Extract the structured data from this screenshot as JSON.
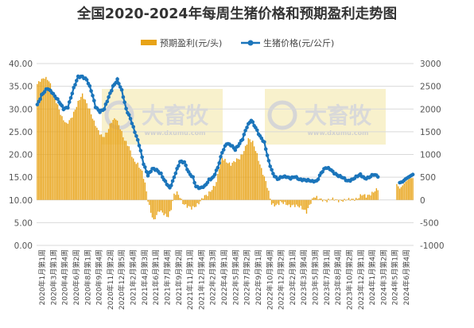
{
  "chart_data": {
    "type": "bar+line",
    "title": "全国2020-2024年每周生猪价格和预期盈利走势图",
    "watermark": {
      "brand": "大畜牧",
      "url": "www.dxumu.com"
    },
    "series": [
      {
        "name": "预期盈利(元/头)",
        "kind": "bar",
        "axis": "right",
        "color": "#E8A317"
      },
      {
        "name": "生猪价格(元/公斤)",
        "kind": "line",
        "axis": "left",
        "color": "#1B75BB"
      }
    ],
    "left_axis": {
      "ticks": [
        "0.00",
        "5.00",
        "10.00",
        "15.00",
        "20.00",
        "25.00",
        "30.00",
        "35.00",
        "40.00"
      ],
      "min": 0,
      "max": 40
    },
    "right_axis": {
      "ticks": [
        "-1000",
        "-500",
        "0",
        "500",
        "1000",
        "1500",
        "2000",
        "2500",
        "3000"
      ],
      "min": -1000,
      "max": 3000
    },
    "x_labels": [
      "2020年1月第1周",
      "2020年3月第1周",
      "2020年4月第4周",
      "2020年6月第2周",
      "2020年8月第1周",
      "2020年9月第4周",
      "2020年11月第2周",
      "2020年12月第5周",
      "2021年2月第4周",
      "2021年4月第3周",
      "2021年6月第1周",
      "2021年7月第4周",
      "2021年9月第2周",
      "2021年11月第1周",
      "2021年12月第4周",
      "2022年2月第3周",
      "2022年4月第1周",
      "2022年5月第4周",
      "2022年7月第2周",
      "2022年9月第1周",
      "2022年10月第4周",
      "2022年12月第2周",
      "2023年2月第1周",
      "2023年3月第4周",
      "2023年5月第3周",
      "2023年7月第1周",
      "2023年8月第4周",
      "2023年10月第2周",
      "2023年12月第1周",
      "2024年1月第4周",
      "2024年3月第2周",
      "2024年5月第1周",
      "2024年6月第4周"
    ],
    "price_keyframes": [
      [
        0,
        31.0
      ],
      [
        3,
        33.0
      ],
      [
        7,
        34.5
      ],
      [
        10,
        33.8
      ],
      [
        14,
        32.0
      ],
      [
        18,
        30.0
      ],
      [
        21,
        30.5
      ],
      [
        25,
        34.5
      ],
      [
        28,
        37.0
      ],
      [
        31,
        37.2
      ],
      [
        34,
        36.5
      ],
      [
        37,
        34.0
      ],
      [
        40,
        30.5
      ],
      [
        43,
        29.5
      ],
      [
        46,
        30.0
      ],
      [
        49,
        32.5
      ],
      [
        52,
        35.0
      ],
      [
        55,
        36.5
      ],
      [
        58,
        34.0
      ],
      [
        61,
        30.0
      ],
      [
        64,
        28.0
      ],
      [
        67,
        25.0
      ],
      [
        70,
        22.0
      ],
      [
        73,
        18.0
      ],
      [
        76,
        15.5
      ],
      [
        79,
        16.8
      ],
      [
        82,
        16.5
      ],
      [
        85,
        15.8
      ],
      [
        88,
        14.0
      ],
      [
        91,
        12.5
      ],
      [
        93,
        14.0
      ],
      [
        95,
        16.0
      ],
      [
        98,
        18.5
      ],
      [
        101,
        18.2
      ],
      [
        104,
        16.0
      ],
      [
        107,
        15.0
      ],
      [
        109,
        13.0
      ],
      [
        112,
        12.5
      ],
      [
        115,
        13.0
      ],
      [
        118,
        14.5
      ],
      [
        121,
        15.0
      ],
      [
        124,
        17.0
      ],
      [
        127,
        20.5
      ],
      [
        130,
        22.5
      ],
      [
        133,
        22.0
      ],
      [
        136,
        21.0
      ],
      [
        138,
        22.0
      ],
      [
        141,
        23.5
      ],
      [
        144,
        26.0
      ],
      [
        147,
        27.5
      ],
      [
        150,
        26.0
      ],
      [
        153,
        24.0
      ],
      [
        156,
        22.5
      ],
      [
        159,
        18.5
      ],
      [
        162,
        15.8
      ],
      [
        165,
        14.5
      ],
      [
        168,
        15.0
      ],
      [
        171,
        15.2
      ],
      [
        174,
        14.8
      ],
      [
        177,
        15.0
      ],
      [
        180,
        14.5
      ],
      [
        183,
        14.5
      ],
      [
        186,
        14.3
      ],
      [
        189,
        14.0
      ],
      [
        192,
        14.2
      ],
      [
        195,
        16.0
      ],
      [
        198,
        17.0
      ],
      [
        201,
        16.8
      ],
      [
        204,
        16.0
      ],
      [
        207,
        15.3
      ],
      [
        210,
        14.8
      ],
      [
        213,
        14.2
      ],
      [
        216,
        14.5
      ],
      [
        219,
        15.0
      ],
      [
        222,
        15.5
      ],
      [
        225,
        14.8
      ],
      [
        228,
        15.0
      ],
      [
        231,
        15.5
      ],
      [
        234,
        15.2
      ]
    ],
    "price_gap": [
      235,
      248
    ],
    "price_tail": [
      [
        249,
        13.8
      ],
      [
        251,
        14.0
      ],
      [
        253,
        14.6
      ],
      [
        256,
        15.2
      ],
      [
        258,
        15.6
      ]
    ],
    "profit_keyframes": [
      [
        0,
        2550
      ],
      [
        2,
        2650
      ],
      [
        5,
        2700
      ],
      [
        8,
        2600
      ],
      [
        11,
        2350
      ],
      [
        14,
        2100
      ],
      [
        17,
        1800
      ],
      [
        20,
        1650
      ],
      [
        23,
        1800
      ],
      [
        26,
        2000
      ],
      [
        29,
        2200
      ],
      [
        31,
        2300
      ],
      [
        33,
        2200
      ],
      [
        36,
        2000
      ],
      [
        39,
        1700
      ],
      [
        42,
        1500
      ],
      [
        45,
        1400
      ],
      [
        48,
        1500
      ],
      [
        51,
        1700
      ],
      [
        54,
        1800
      ],
      [
        57,
        1600
      ],
      [
        60,
        1300
      ],
      [
        63,
        1150
      ],
      [
        66,
        900
      ],
      [
        69,
        800
      ],
      [
        72,
        600
      ],
      [
        74,
        350
      ],
      [
        76,
        0
      ],
      [
        78,
        -250
      ],
      [
        80,
        -450
      ],
      [
        82,
        -350
      ],
      [
        84,
        -250
      ],
      [
        87,
        -300
      ],
      [
        90,
        -350
      ],
      [
        92,
        -200
      ],
      [
        94,
        100
      ],
      [
        96,
        150
      ],
      [
        98,
        80
      ],
      [
        100,
        -50
      ],
      [
        103,
        -150
      ],
      [
        106,
        -200
      ],
      [
        108,
        -150
      ],
      [
        111,
        -50
      ],
      [
        114,
        50
      ],
      [
        117,
        100
      ],
      [
        120,
        250
      ],
      [
        123,
        400
      ],
      [
        125,
        700
      ],
      [
        127,
        900
      ],
      [
        130,
        850
      ],
      [
        133,
        800
      ],
      [
        136,
        850
      ],
      [
        139,
        900
      ],
      [
        142,
        1100
      ],
      [
        145,
        1350
      ],
      [
        148,
        1250
      ],
      [
        151,
        1000
      ],
      [
        154,
        700
      ],
      [
        157,
        400
      ],
      [
        159,
        150
      ],
      [
        161,
        -100
      ],
      [
        164,
        -100
      ],
      [
        167,
        -50
      ],
      [
        170,
        -100
      ],
      [
        173,
        -120
      ],
      [
        176,
        -100
      ],
      [
        179,
        -150
      ],
      [
        182,
        -200
      ],
      [
        185,
        -250
      ],
      [
        187,
        -100
      ],
      [
        190,
        50
      ],
      [
        193,
        30
      ],
      [
        196,
        20
      ],
      [
        199,
        -20
      ],
      [
        202,
        0
      ],
      [
        205,
        10
      ],
      [
        208,
        0
      ],
      [
        211,
        -20
      ],
      [
        214,
        0
      ],
      [
        217,
        30
      ],
      [
        220,
        40
      ],
      [
        223,
        100
      ],
      [
        226,
        80
      ],
      [
        229,
        150
      ],
      [
        232,
        200
      ],
      [
        234,
        220
      ]
    ],
    "profit_gap": [
      235,
      246
    ],
    "profit_tail": [
      [
        247,
        350
      ],
      [
        249,
        250
      ],
      [
        251,
        320
      ],
      [
        253,
        400
      ],
      [
        256,
        480
      ]
    ],
    "total_weeks": 259
  }
}
